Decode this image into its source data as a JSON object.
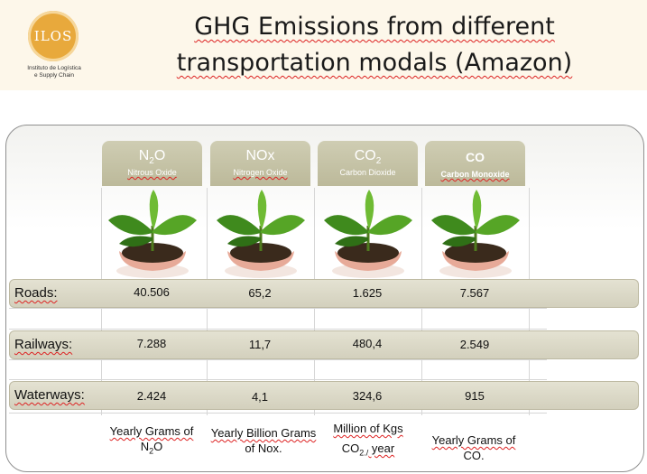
{
  "logo": {
    "mark": "ILOS",
    "caption_line1": "Instituto de Logística",
    "caption_line2": "e Supply Chain"
  },
  "title": {
    "line1": "GHG Emissions from different",
    "line2": "transportation modals (Amazon)"
  },
  "gases": [
    {
      "formula_main": "N",
      "formula_sub": "2",
      "formula_tail": "O",
      "name": "Nitrous Oxide"
    },
    {
      "formula_main": "NOx",
      "formula_sub": "",
      "formula_tail": "",
      "name": "Nitrogen Oxide"
    },
    {
      "formula_main": "CO",
      "formula_sub": "2",
      "formula_tail": "",
      "name": "Carbon Dioxide"
    },
    {
      "formula_main": "CO",
      "formula_sub": "",
      "formula_tail": "",
      "name": "Carbon Monoxide"
    }
  ],
  "rows": [
    {
      "label": "Roads:",
      "values": [
        "40.506",
        "65,2",
        "1.625",
        "7.567"
      ]
    },
    {
      "label": "Railways:",
      "values": [
        "7.288",
        "11,7",
        "480,4",
        "2.549"
      ]
    },
    {
      "label": "Waterways:",
      "values": [
        "2.424",
        "4,1",
        "324,6",
        "915"
      ]
    }
  ],
  "units": [
    {
      "line1": "Yearly Grams of",
      "line2_main": "N",
      "line2_sub": "2",
      "line2_tail": "O"
    },
    {
      "line1": "Yearly Billion Grams",
      "line2_main": "of Nox.",
      "line2_sub": "",
      "line2_tail": ""
    },
    {
      "line1": "Million of Kgs",
      "line2_main": "CO",
      "line2_sub": "2./",
      "line2_tail": " year"
    },
    {
      "line1": "Yearly Grams of",
      "line2_main": "CO.",
      "line2_sub": "",
      "line2_tail": ""
    }
  ],
  "colors": {
    "tab": "#c6c3a6",
    "band": "#dcdac8",
    "logo": "#e8a93c"
  },
  "icons": [
    "plant-in-hands-icon"
  ]
}
